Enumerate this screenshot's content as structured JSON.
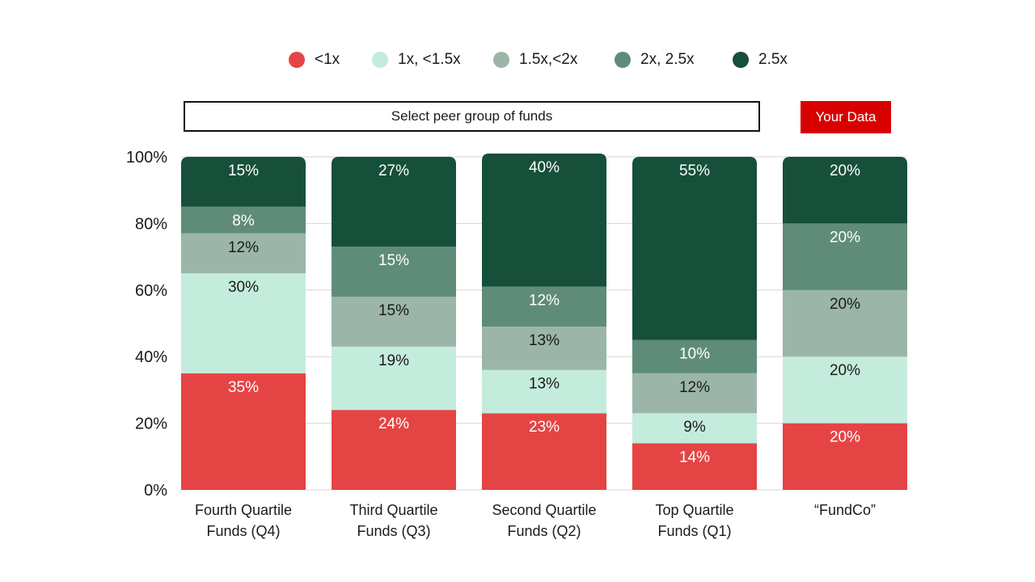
{
  "legend": [
    {
      "label": "<1x",
      "color": "#e54444"
    },
    {
      "label": "1x, <1.5x",
      "color": "#c4ecdc"
    },
    {
      "label": "1.5x,<2x",
      "color": "#9bb6a8"
    },
    {
      "label": "2x, 2.5x",
      "color": "#5f8c78"
    },
    {
      "label": "2.5x",
      "color": "#17503a"
    }
  ],
  "controls": {
    "peer_group_label": "Select peer group of funds",
    "your_data_label": "Your Data"
  },
  "chart_data": {
    "type": "bar",
    "stacked": true,
    "categories": [
      [
        "Fourth Quartile",
        "Funds (Q4)"
      ],
      [
        "Third Quartile",
        "Funds (Q3)"
      ],
      [
        "Second Quartile",
        "Funds (Q2)"
      ],
      [
        "Top Quartile",
        "Funds (Q1)"
      ],
      [
        "“FundCo”"
      ]
    ],
    "series": [
      {
        "name": "<1x",
        "color": "#e54444",
        "label_color": "#ffffff",
        "values": [
          35,
          24,
          23,
          14,
          20
        ],
        "labels": [
          "35%",
          "24%",
          "23%",
          "14%",
          "20%"
        ]
      },
      {
        "name": "1x, <1.5x",
        "color": "#c4ecdc",
        "label_color": "#1a1a1a",
        "values": [
          30,
          19,
          13,
          9,
          20
        ],
        "labels": [
          "30%",
          "19%",
          "13%",
          "9%",
          "20%"
        ]
      },
      {
        "name": "1.5x,<2x",
        "color": "#9bb6a8",
        "label_color": "#1a1a1a",
        "values": [
          12,
          15,
          13,
          12,
          20
        ],
        "labels": [
          "12%",
          "15%",
          "13%",
          "12%",
          "20%"
        ]
      },
      {
        "name": "2x, 2.5x",
        "color": "#5f8c78",
        "label_color": "#ffffff",
        "values": [
          8,
          15,
          12,
          10,
          20
        ],
        "labels": [
          "8%",
          "15%",
          "12%",
          "10%",
          "20%"
        ]
      },
      {
        "name": "2.5x",
        "color": "#17503a",
        "label_color": "#ffffff",
        "values": [
          15,
          27,
          40,
          55,
          20
        ],
        "labels": [
          "15%",
          "27%",
          "40%",
          "55%",
          "20%"
        ]
      }
    ],
    "ylim": [
      0,
      100
    ],
    "yticks": [
      "0%",
      "20%",
      "40%",
      "60%",
      "80%",
      "100%"
    ],
    "ytick_values": [
      0,
      20,
      40,
      60,
      80,
      100
    ],
    "grid": true,
    "legend_position": "top-center"
  }
}
